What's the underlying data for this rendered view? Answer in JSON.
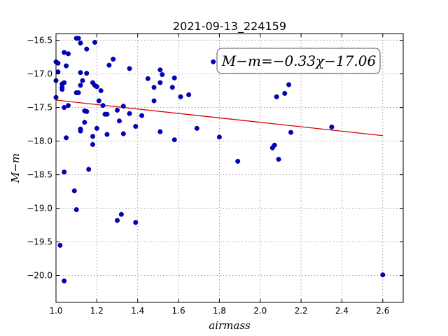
{
  "chart_data": {
    "type": "scatter",
    "title": "2021-09-13_224159",
    "xlabel": "airmass",
    "ylabel": "M−m",
    "xlim": [
      1.0,
      2.7
    ],
    "ylim": [
      -20.4,
      -16.4
    ],
    "y_inverted": true,
    "grid": true,
    "x_ticks": [
      1.0,
      1.2,
      1.4,
      1.6,
      1.8,
      2.0,
      2.2,
      2.4,
      2.6
    ],
    "x_tick_labels": [
      "1.0",
      "1.2",
      "1.4",
      "1.6",
      "1.8",
      "2.0",
      "2.2",
      "2.4",
      "2.6"
    ],
    "y_ticks": [
      -16.5,
      -17.0,
      -17.5,
      -18.0,
      -18.5,
      -19.0,
      -19.5,
      -20.0
    ],
    "y_tick_labels": [
      "−16.5",
      "−17.0",
      "−17.5",
      "−18.0",
      "−18.5",
      "−19.0",
      "−19.5",
      "−20.0"
    ],
    "annotation": "M−m=−0.33χ−17.06",
    "annotation_position": "top-right",
    "colors": {
      "points": "#0000cc",
      "fit_line": "#dd0000",
      "grid": "#888888"
    },
    "fit": {
      "slope": -0.33,
      "intercept": -17.06,
      "x_range": [
        1.0,
        2.6
      ]
    },
    "points": [
      [
        1.0,
        -16.82
      ],
      [
        1.01,
        -16.84
      ],
      [
        1.01,
        -16.97
      ],
      [
        1.0,
        -17.1
      ],
      [
        1.0,
        -17.35
      ],
      [
        1.03,
        -17.15
      ],
      [
        1.03,
        -17.2
      ],
      [
        1.03,
        -17.23
      ],
      [
        1.04,
        -16.68
      ],
      [
        1.05,
        -16.88
      ],
      [
        1.06,
        -16.7
      ],
      [
        1.04,
        -17.13
      ],
      [
        1.04,
        -17.5
      ],
      [
        1.06,
        -17.47
      ],
      [
        1.05,
        -17.95
      ],
      [
        1.04,
        -18.46
      ],
      [
        1.02,
        -19.55
      ],
      [
        1.04,
        -20.08
      ],
      [
        1.09,
        -18.74
      ],
      [
        1.1,
        -19.02
      ],
      [
        1.1,
        -16.47
      ],
      [
        1.11,
        -16.47
      ],
      [
        1.12,
        -16.54
      ],
      [
        1.12,
        -16.98
      ],
      [
        1.15,
        -16.63
      ],
      [
        1.15,
        -16.99
      ],
      [
        1.13,
        -17.1
      ],
      [
        1.12,
        -17.17
      ],
      [
        1.1,
        -17.28
      ],
      [
        1.11,
        -17.28
      ],
      [
        1.14,
        -17.55
      ],
      [
        1.15,
        -17.56
      ],
      [
        1.12,
        -17.82
      ],
      [
        1.12,
        -17.85
      ],
      [
        1.14,
        -17.72
      ],
      [
        1.16,
        -18.42
      ],
      [
        1.18,
        -17.93
      ],
      [
        1.18,
        -18.05
      ],
      [
        1.19,
        -16.53
      ],
      [
        1.18,
        -17.13
      ],
      [
        1.19,
        -17.17
      ],
      [
        1.2,
        -17.19
      ],
      [
        1.22,
        -17.25
      ],
      [
        1.21,
        -17.4
      ],
      [
        1.23,
        -17.47
      ],
      [
        1.24,
        -17.6
      ],
      [
        1.25,
        -17.6
      ],
      [
        1.2,
        -17.81
      ],
      [
        1.25,
        -17.9
      ],
      [
        1.26,
        -16.87
      ],
      [
        1.28,
        -16.78
      ],
      [
        1.3,
        -17.54
      ],
      [
        1.33,
        -17.48
      ],
      [
        1.31,
        -17.7
      ],
      [
        1.33,
        -17.89
      ],
      [
        1.36,
        -16.92
      ],
      [
        1.36,
        -17.59
      ],
      [
        1.39,
        -17.78
      ],
      [
        1.42,
        -17.62
      ],
      [
        1.45,
        -17.07
      ],
      [
        1.48,
        -17.2
      ],
      [
        1.48,
        -17.4
      ],
      [
        1.51,
        -16.94
      ],
      [
        1.52,
        -17.01
      ],
      [
        1.51,
        -17.13
      ],
      [
        1.51,
        -17.86
      ],
      [
        1.57,
        -17.2
      ],
      [
        1.58,
        -17.06
      ],
      [
        1.58,
        -17.98
      ],
      [
        1.61,
        -17.34
      ],
      [
        1.65,
        -17.31
      ],
      [
        1.69,
        -17.81
      ],
      [
        1.3,
        -19.18
      ],
      [
        1.32,
        -19.09
      ],
      [
        1.39,
        -19.21
      ],
      [
        1.77,
        -16.82
      ],
      [
        1.8,
        -17.94
      ],
      [
        1.89,
        -18.3
      ],
      [
        2.06,
        -18.1
      ],
      [
        2.07,
        -18.06
      ],
      [
        2.08,
        -17.34
      ],
      [
        2.09,
        -18.27
      ],
      [
        2.12,
        -17.29
      ],
      [
        2.14,
        -17.16
      ],
      [
        2.15,
        -17.87
      ],
      [
        2.35,
        -17.79
      ],
      [
        2.6,
        -19.99
      ]
    ]
  }
}
